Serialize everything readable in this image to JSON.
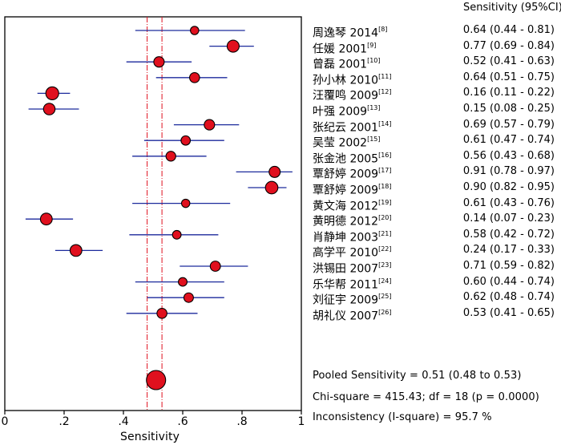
{
  "chart_data": {
    "type": "forest",
    "xlabel": "Sensitivity",
    "column_header": "Sensitivity (95%CI)",
    "xlim": [
      0,
      1
    ],
    "x_ticks": [
      "0",
      ".2",
      ".4",
      ".6",
      ".8",
      "1"
    ],
    "studies": [
      {
        "name": "周逸琴 2014",
        "ref": "[8]",
        "value": 0.64,
        "lo": 0.44,
        "hi": 0.81,
        "ci_text": "0.64 (0.44 - 0.81)"
      },
      {
        "name": "任媛 2001",
        "ref": "[9]",
        "value": 0.77,
        "lo": 0.69,
        "hi": 0.84,
        "ci_text": "0.77 (0.69 - 0.84)"
      },
      {
        "name": "曾磊 2001",
        "ref": "[10]",
        "value": 0.52,
        "lo": 0.41,
        "hi": 0.63,
        "ci_text": "0.52 (0.41 - 0.63)"
      },
      {
        "name": "孙小林 2010",
        "ref": "[11]",
        "value": 0.64,
        "lo": 0.51,
        "hi": 0.75,
        "ci_text": "0.64 (0.51 - 0.75)"
      },
      {
        "name": "汪覆鸣 2009",
        "ref": "[12]",
        "value": 0.16,
        "lo": 0.11,
        "hi": 0.22,
        "ci_text": "0.16 (0.11 - 0.22)"
      },
      {
        "name": "叶强 2009",
        "ref": "[13]",
        "value": 0.15,
        "lo": 0.08,
        "hi": 0.25,
        "ci_text": "0.15 (0.08 - 0.25)"
      },
      {
        "name": "张纪云 2001",
        "ref": "[14]",
        "value": 0.69,
        "lo": 0.57,
        "hi": 0.79,
        "ci_text": "0.69 (0.57 - 0.79)"
      },
      {
        "name": "吴莹 2002",
        "ref": "[15]",
        "value": 0.61,
        "lo": 0.47,
        "hi": 0.74,
        "ci_text": "0.61 (0.47 - 0.74)"
      },
      {
        "name": "张金池 2005",
        "ref": "[16]",
        "value": 0.56,
        "lo": 0.43,
        "hi": 0.68,
        "ci_text": "0.56 (0.43 - 0.68)"
      },
      {
        "name": "覃舒婷 2009",
        "ref": "[17]",
        "value": 0.91,
        "lo": 0.78,
        "hi": 0.97,
        "ci_text": "0.91 (0.78 - 0.97)"
      },
      {
        "name": "覃舒婷 2009",
        "ref": "[18]",
        "value": 0.9,
        "lo": 0.82,
        "hi": 0.95,
        "ci_text": "0.90 (0.82 - 0.95)"
      },
      {
        "name": "黄文海 2012",
        "ref": "[19]",
        "value": 0.61,
        "lo": 0.43,
        "hi": 0.76,
        "ci_text": "0.61 (0.43 - 0.76)"
      },
      {
        "name": "黄明德 2012",
        "ref": "[20]",
        "value": 0.14,
        "lo": 0.07,
        "hi": 0.23,
        "ci_text": "0.14 (0.07 - 0.23)"
      },
      {
        "name": "肖静坤 2003",
        "ref": "[21]",
        "value": 0.58,
        "lo": 0.42,
        "hi": 0.72,
        "ci_text": "0.58 (0.42 - 0.72)"
      },
      {
        "name": "高学平 2010",
        "ref": "[22]",
        "value": 0.24,
        "lo": 0.17,
        "hi": 0.33,
        "ci_text": "0.24 (0.17 - 0.33)"
      },
      {
        "name": "洪锡田 2007",
        "ref": "[23]",
        "value": 0.71,
        "lo": 0.59,
        "hi": 0.82,
        "ci_text": "0.71 (0.59 - 0.82)"
      },
      {
        "name": "乐华帮 2011",
        "ref": "[24]",
        "value": 0.6,
        "lo": 0.44,
        "hi": 0.74,
        "ci_text": "0.60 (0.44 - 0.74)"
      },
      {
        "name": "刘征宇 2009",
        "ref": "[25]",
        "value": 0.62,
        "lo": 0.48,
        "hi": 0.74,
        "ci_text": "0.62 (0.48 - 0.74)"
      },
      {
        "name": "胡礼仪 2007",
        "ref": "[26]",
        "value": 0.53,
        "lo": 0.41,
        "hi": 0.65,
        "ci_text": "0.53 (0.41 - 0.65)"
      }
    ],
    "pooled": {
      "value": 0.51,
      "lo": 0.48,
      "hi": 0.53
    },
    "pooled_text": "Pooled Sensitivity = 0.51 (0.48 to 0.53)",
    "chi_text": "Chi-square = 415.43; df =  18  (p = 0.0000)",
    "inconsistency_text": "Inconsistency (I-square) = 95.7 %",
    "colors": {
      "point_fill": "#e0101e",
      "ci_line": "#1c2a9c",
      "ref_line": "#e0101e",
      "axis": "#000000"
    }
  }
}
